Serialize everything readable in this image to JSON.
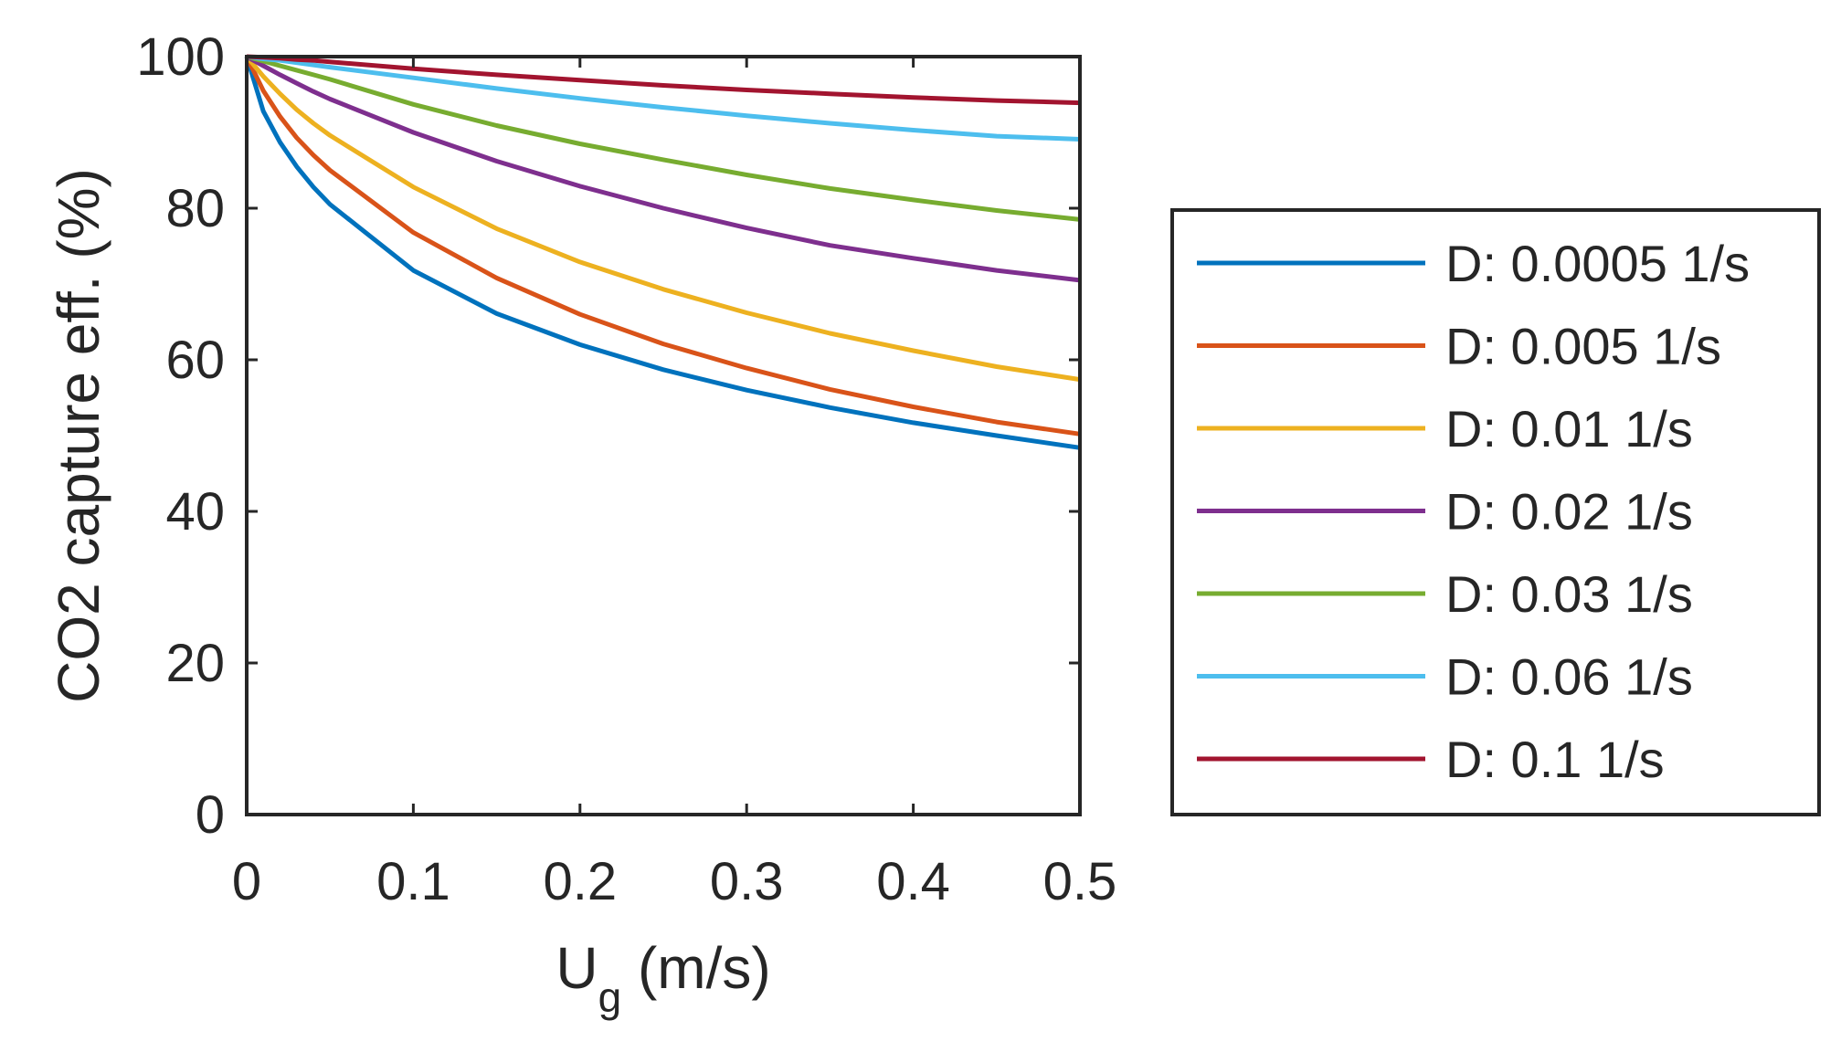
{
  "chart_data": {
    "type": "line",
    "xlabel_main": "U",
    "xlabel_sub": "g",
    "xlabel_rest": " (m/s)",
    "ylabel": "CO2 capture eff. (%)",
    "xlim": [
      0,
      0.5
    ],
    "ylim": [
      0,
      100
    ],
    "xticks": [
      0,
      0.1,
      0.2,
      0.3,
      0.4,
      0.5
    ],
    "xtick_labels": [
      "0",
      "0.1",
      "0.2",
      "0.3",
      "0.4",
      "0.5"
    ],
    "yticks": [
      0,
      20,
      40,
      60,
      80,
      100
    ],
    "ytick_labels": [
      "0",
      "20",
      "40",
      "60",
      "80",
      "100"
    ],
    "grid": false,
    "legend_position": "outside-right",
    "x": [
      0,
      0.01,
      0.02,
      0.03,
      0.04,
      0.05,
      0.1,
      0.15,
      0.2,
      0.25,
      0.3,
      0.35,
      0.4,
      0.45,
      0.5
    ],
    "series": [
      {
        "name": "D: 0.0005 1/s",
        "color": "#0072BD",
        "values": [
          100,
          92.8,
          88.7,
          85.5,
          82.8,
          80.5,
          71.8,
          66.1,
          62.0,
          58.7,
          56.0,
          53.7,
          51.7,
          50.0,
          48.4
        ]
      },
      {
        "name": "D: 0.005 1/s",
        "color": "#D95319",
        "values": [
          100,
          95.5,
          92.1,
          89.3,
          87.0,
          85.0,
          76.8,
          70.8,
          66.0,
          62.1,
          58.9,
          56.1,
          53.8,
          51.8,
          50.2
        ]
      },
      {
        "name": "D: 0.01 1/s",
        "color": "#EDB120",
        "values": [
          100,
          97.4,
          95.1,
          93.0,
          91.2,
          89.6,
          82.8,
          77.3,
          72.9,
          69.3,
          66.2,
          63.5,
          61.2,
          59.1,
          57.4
        ]
      },
      {
        "name": "D: 0.02 1/s",
        "color": "#7E2F8E",
        "values": [
          100,
          98.8,
          97.6,
          96.5,
          95.4,
          94.4,
          90.0,
          86.2,
          82.9,
          80.0,
          77.4,
          75.1,
          73.4,
          71.8,
          70.5
        ]
      },
      {
        "name": "D: 0.03 1/s",
        "color": "#77AC30",
        "values": [
          100,
          99.4,
          98.8,
          98.2,
          97.6,
          97.0,
          93.7,
          90.9,
          88.5,
          86.4,
          84.4,
          82.6,
          81.1,
          79.7,
          78.5
        ]
      },
      {
        "name": "D: 0.06 1/s",
        "color": "#4DBEEE",
        "values": [
          100,
          99.7,
          99.5,
          99.2,
          98.9,
          98.6,
          97.2,
          95.8,
          94.5,
          93.3,
          92.2,
          91.2,
          90.3,
          89.5,
          89.1
        ]
      },
      {
        "name": "D: 0.1 1/s",
        "color": "#A2142F",
        "values": [
          100,
          99.9,
          99.8,
          99.6,
          99.5,
          99.3,
          98.4,
          97.6,
          96.9,
          96.2,
          95.6,
          95.1,
          94.6,
          94.2,
          93.9
        ]
      }
    ]
  }
}
